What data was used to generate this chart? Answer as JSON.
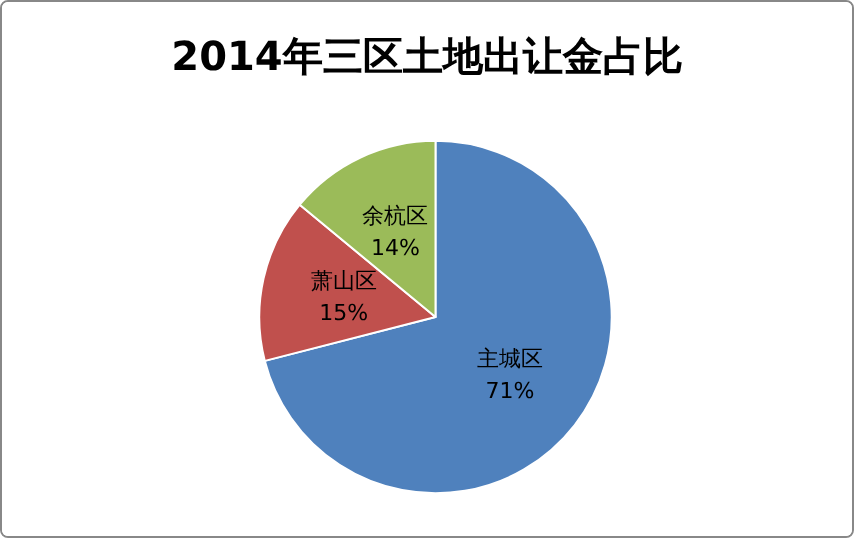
{
  "chart_data": {
    "type": "pie",
    "title": "2014年三区土地出让金占比",
    "categories": [
      "主城区",
      "萧山区",
      "余杭区"
    ],
    "values": [
      71,
      15,
      14
    ],
    "colors": [
      "#4f81bd",
      "#c0504d",
      "#9bbb59"
    ],
    "value_labels": [
      "71%",
      "15%",
      "14%"
    ],
    "legend": false
  }
}
